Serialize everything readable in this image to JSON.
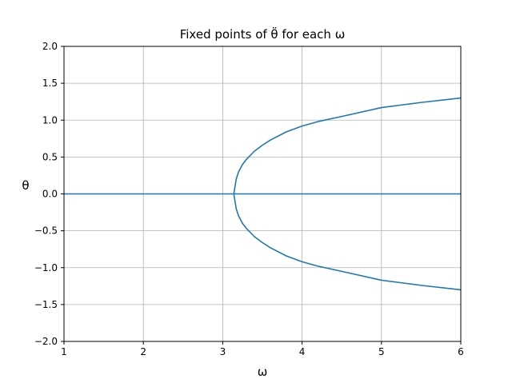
{
  "chart_data": {
    "type": "line",
    "title": "Fixed points of θ̈ for each ω",
    "xlabel": "ω",
    "ylabel": "θ",
    "xlim": [
      1,
      6
    ],
    "ylim": [
      -2.0,
      2.0
    ],
    "xticks": [
      "1",
      "2",
      "3",
      "4",
      "5",
      "6"
    ],
    "yticks": [
      "2.0",
      "1.5",
      "1.0",
      "0.5",
      "0.0",
      "−0.5",
      "−1.0",
      "−1.5",
      "−2.0"
    ],
    "grid": true,
    "color": "#1f77b4",
    "series": [
      {
        "x": [
          1,
          2,
          3,
          4,
          5,
          6
        ],
        "y": [
          0,
          0,
          0,
          0,
          0,
          0
        ]
      },
      {
        "x": [
          6.0,
          5.5,
          5.0,
          4.5,
          4.2,
          4.0,
          3.8,
          3.6,
          3.5,
          3.4,
          3.3,
          3.25,
          3.2,
          3.17,
          3.14,
          3.17,
          3.2,
          3.25,
          3.3,
          3.4,
          3.5,
          3.6,
          3.8,
          4.0,
          4.2,
          4.5,
          5.0,
          5.5,
          6.0
        ],
        "y": [
          1.3,
          1.24,
          1.17,
          1.05,
          0.98,
          0.92,
          0.84,
          0.73,
          0.66,
          0.58,
          0.47,
          0.4,
          0.3,
          0.2,
          0.0,
          -0.2,
          -0.3,
          -0.4,
          -0.47,
          -0.58,
          -0.66,
          -0.73,
          -0.84,
          -0.92,
          -0.98,
          -1.05,
          -1.17,
          -1.24,
          -1.3
        ]
      }
    ]
  }
}
